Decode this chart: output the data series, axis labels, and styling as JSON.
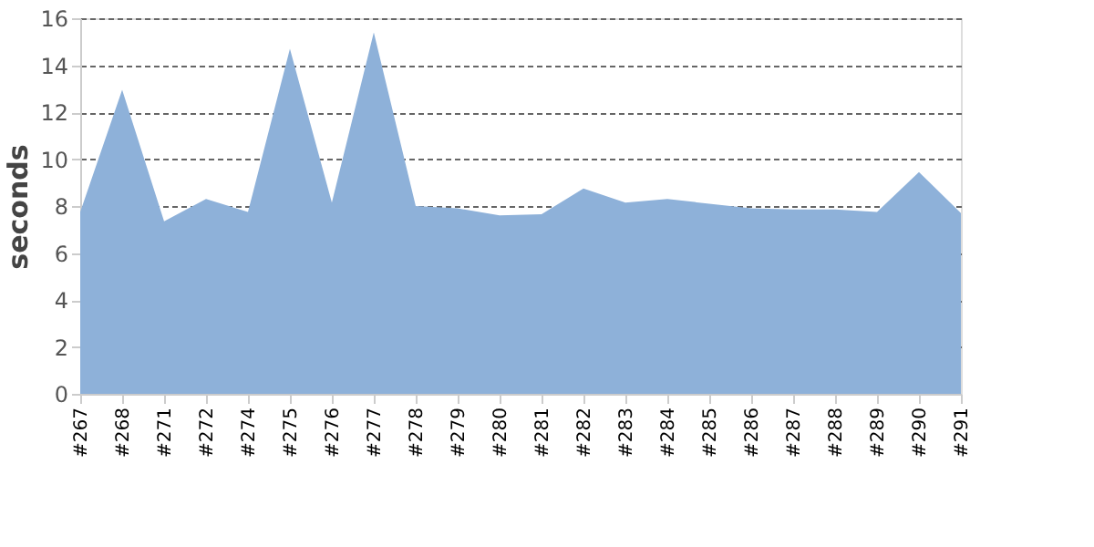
{
  "chart_data": {
    "type": "area",
    "ylabel": "seconds",
    "categories": [
      "#267",
      "#268",
      "#271",
      "#272",
      "#274",
      "#275",
      "#276",
      "#277",
      "#278",
      "#279",
      "#280",
      "#281",
      "#282",
      "#283",
      "#284",
      "#285",
      "#286",
      "#287",
      "#288",
      "#289",
      "#290",
      "#291"
    ],
    "series": [
      {
        "color": "#8eb1d9",
        "values": [
          7.75,
          12.95,
          7.35,
          8.3,
          7.75,
          14.7,
          8.15,
          15.4,
          8.0,
          7.9,
          7.6,
          7.65,
          8.75,
          8.15,
          8.3,
          8.1,
          7.9,
          7.85,
          7.85,
          7.75,
          9.45,
          7.7
        ]
      }
    ],
    "ylim": [
      0,
      16
    ],
    "yticks": [
      0,
      2,
      4,
      6,
      8,
      10,
      12,
      14,
      16
    ],
    "grid": "y"
  }
}
